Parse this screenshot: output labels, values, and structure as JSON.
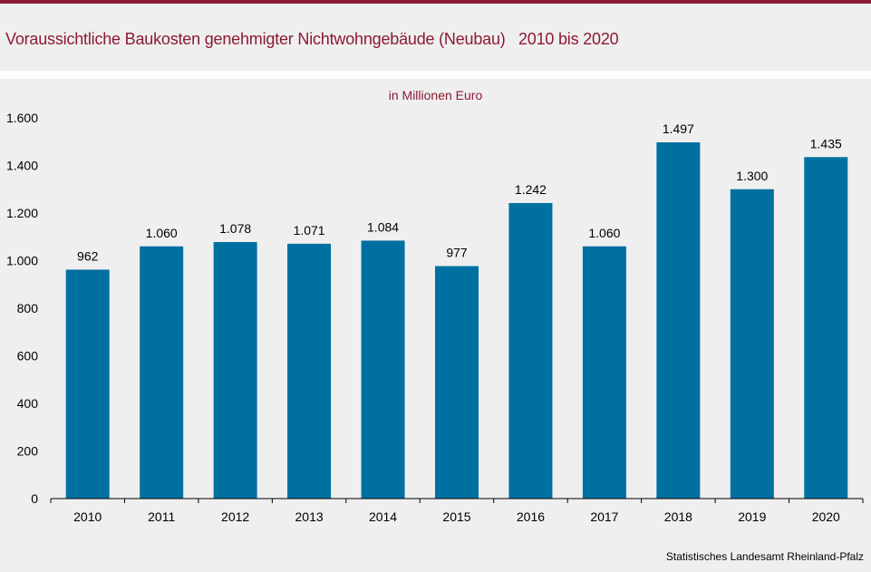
{
  "title": "Voraussichtliche Baukosten genehmigter Nichtwohngebäude (Neubau)   2010 bis 2020",
  "source": "Statistisches Landesamt  Rheinland-Pfalz",
  "colors": {
    "accent": "#8b1a33",
    "bar": "#0070a0",
    "background": "#efefef"
  },
  "chart_data": {
    "type": "bar",
    "title": "",
    "ylabel": "in Millionen Euro",
    "xlabel": "",
    "categories": [
      "2010",
      "2011",
      "2012",
      "2013",
      "2014",
      "2015",
      "2016",
      "2017",
      "2018",
      "2019",
      "2020"
    ],
    "values": [
      962,
      1060,
      1078,
      1071,
      1084,
      977,
      1242,
      1060,
      1497,
      1300,
      1435
    ],
    "value_labels": [
      "962",
      "1.060",
      "1.078",
      "1.071",
      "1.084",
      "977",
      "1.242",
      "1.060",
      "1.497",
      "1.300",
      "1.435"
    ],
    "ylim": [
      0,
      1600
    ],
    "yticks": [
      0,
      200,
      400,
      600,
      800,
      1000,
      1200,
      1400,
      1600
    ],
    "ytick_labels": [
      "0",
      "200",
      "400",
      "600",
      "800",
      "1.000",
      "1.200",
      "1.400",
      "1.600"
    ],
    "grid": false,
    "legend": "none"
  }
}
